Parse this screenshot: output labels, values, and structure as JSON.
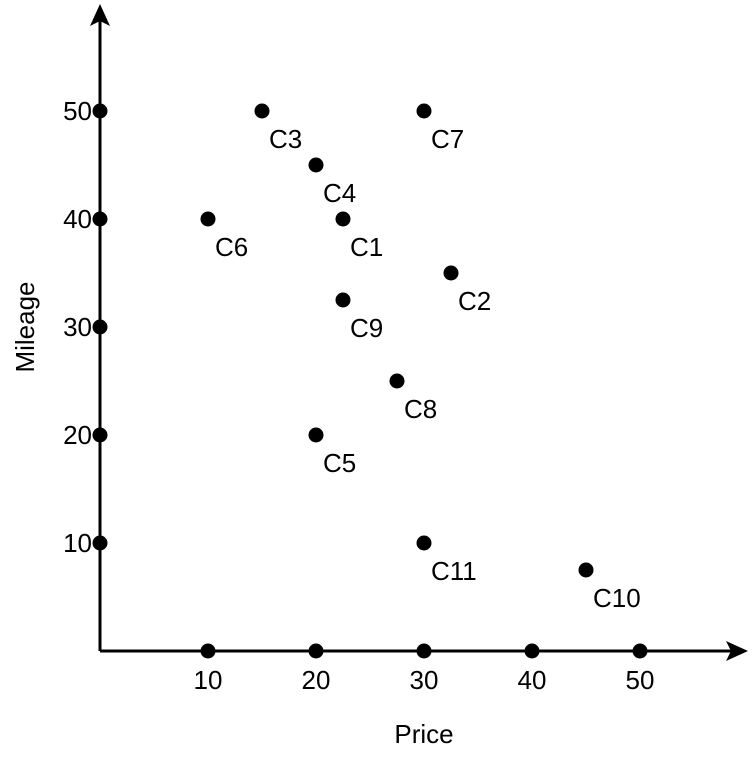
{
  "chart_data": {
    "type": "scatter",
    "title": "",
    "xlabel": "Price",
    "ylabel": "Mileage",
    "xlim": [
      0,
      55
    ],
    "ylim": [
      0,
      55
    ],
    "x_ticks": [
      10,
      20,
      30,
      40,
      50
    ],
    "y_ticks": [
      10,
      20,
      30,
      40,
      50
    ],
    "tick_markers": true,
    "grid": false,
    "legend": "none",
    "point_color": "#000000",
    "points": [
      {
        "label": "C1",
        "x": 22.5,
        "y": 40
      },
      {
        "label": "C2",
        "x": 32.5,
        "y": 35
      },
      {
        "label": "C3",
        "x": 15,
        "y": 50
      },
      {
        "label": "C4",
        "x": 20,
        "y": 45
      },
      {
        "label": "C5",
        "x": 20,
        "y": 20
      },
      {
        "label": "C6",
        "x": 10,
        "y": 40
      },
      {
        "label": "C7",
        "x": 30,
        "y": 50
      },
      {
        "label": "C8",
        "x": 27.5,
        "y": 25
      },
      {
        "label": "C9",
        "x": 22.5,
        "y": 32.5
      },
      {
        "label": "C10",
        "x": 45,
        "y": 7.5
      },
      {
        "label": "C11",
        "x": 30,
        "y": 10
      }
    ]
  }
}
